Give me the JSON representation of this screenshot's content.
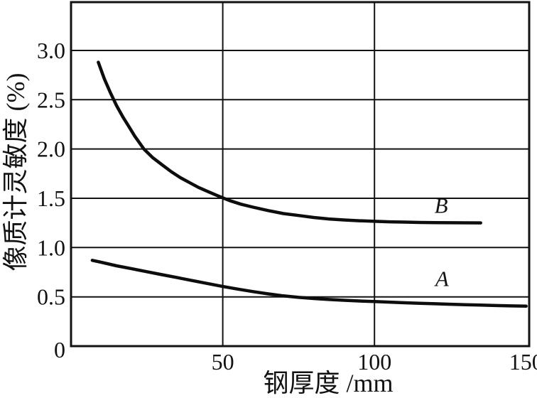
{
  "figure": {
    "background": "#ffffff",
    "ink": "#121212",
    "curve_stroke": "#0d0d0d"
  },
  "chart_data": {
    "type": "line",
    "title": "",
    "xlabel": "钢厚度 /mm",
    "ylabel": "像质计灵敏度 (%)",
    "xlim": [
      0,
      151
    ],
    "ylim": [
      0,
      3.49
    ],
    "grid": true,
    "legend": "inline curve labels",
    "x_ticks": [
      {
        "value": 50,
        "label": "50"
      },
      {
        "value": 100,
        "label": "100"
      },
      {
        "value": 150,
        "label": "150"
      }
    ],
    "x_gridline_values": [
      50,
      100
    ],
    "y_ticks": [
      {
        "value": 0.5,
        "label": "0.5"
      },
      {
        "value": 1.0,
        "label": "1.0"
      },
      {
        "value": 1.5,
        "label": "1.5"
      },
      {
        "value": 2.0,
        "label": "2.0"
      },
      {
        "value": 2.5,
        "label": "2.5"
      },
      {
        "value": 3.0,
        "label": "3.0"
      }
    ],
    "y_gridline_values": [
      0.5,
      1.0,
      1.5,
      2.0,
      2.5,
      3.0
    ],
    "origin_label": "0",
    "series": [
      {
        "name": "B",
        "label": "B",
        "label_at": {
          "x": 122,
          "y": 1.43
        },
        "points": [
          [
            9,
            2.88
          ],
          [
            11,
            2.71
          ],
          [
            13,
            2.57
          ],
          [
            15,
            2.44
          ],
          [
            17,
            2.33
          ],
          [
            19,
            2.23
          ],
          [
            21,
            2.13
          ],
          [
            24,
            2.0
          ],
          [
            27,
            1.91
          ],
          [
            30,
            1.84
          ],
          [
            33,
            1.77
          ],
          [
            36,
            1.71
          ],
          [
            39,
            1.66
          ],
          [
            42,
            1.61
          ],
          [
            45,
            1.57
          ],
          [
            48,
            1.53
          ],
          [
            52,
            1.48
          ],
          [
            56,
            1.44
          ],
          [
            60,
            1.41
          ],
          [
            65,
            1.375
          ],
          [
            70,
            1.345
          ],
          [
            75,
            1.325
          ],
          [
            80,
            1.305
          ],
          [
            85,
            1.29
          ],
          [
            90,
            1.28
          ],
          [
            95,
            1.272
          ],
          [
            100,
            1.266
          ],
          [
            105,
            1.261
          ],
          [
            110,
            1.258
          ],
          [
            115,
            1.255
          ],
          [
            120,
            1.253
          ],
          [
            125,
            1.252
          ],
          [
            130,
            1.251
          ],
          [
            135,
            1.25
          ]
        ]
      },
      {
        "name": "A",
        "label": "A",
        "label_at": {
          "x": 122.3,
          "y": 0.69
        },
        "points": [
          [
            7,
            0.87
          ],
          [
            10,
            0.85
          ],
          [
            15,
            0.815
          ],
          [
            20,
            0.785
          ],
          [
            25,
            0.755
          ],
          [
            30,
            0.725
          ],
          [
            35,
            0.695
          ],
          [
            40,
            0.665
          ],
          [
            45,
            0.635
          ],
          [
            50,
            0.605
          ],
          [
            55,
            0.578
          ],
          [
            60,
            0.553
          ],
          [
            65,
            0.53
          ],
          [
            70,
            0.51
          ],
          [
            75,
            0.495
          ],
          [
            80,
            0.483
          ],
          [
            85,
            0.473
          ],
          [
            90,
            0.465
          ],
          [
            95,
            0.458
          ],
          [
            100,
            0.452
          ],
          [
            105,
            0.446
          ],
          [
            110,
            0.44
          ],
          [
            115,
            0.435
          ],
          [
            120,
            0.43
          ],
          [
            125,
            0.425
          ],
          [
            130,
            0.42
          ],
          [
            135,
            0.416
          ],
          [
            140,
            0.412
          ],
          [
            145,
            0.408
          ],
          [
            150,
            0.405
          ]
        ]
      }
    ]
  }
}
